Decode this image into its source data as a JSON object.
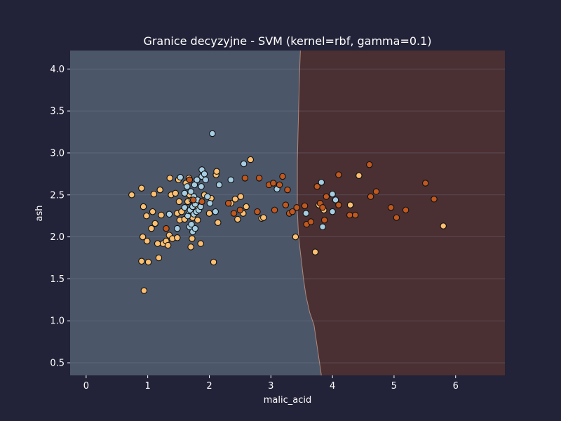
{
  "chart_data": {
    "type": "scatter",
    "title": "Granice decyzyjne - SVM (kernel=rbf, gamma=0.1)",
    "xlabel": "malic_acid",
    "ylabel": "ash",
    "xlim": [
      -0.26,
      6.8
    ],
    "ylim": [
      0.35,
      4.22
    ],
    "xticks": [
      0,
      1,
      2,
      3,
      4,
      5,
      6
    ],
    "yticks": [
      0.5,
      1.0,
      1.5,
      2.0,
      2.5,
      3.0,
      3.5,
      4.0
    ],
    "grid": true,
    "regions": [
      {
        "class": "class_0",
        "color": "#4b5669",
        "side": "left"
      },
      {
        "class": "class_2",
        "color": "#4a3033",
        "side": "right"
      }
    ],
    "boundary": [
      [
        3.82,
        0.35
      ],
      [
        3.78,
        0.55
      ],
      [
        3.74,
        0.75
      ],
      [
        3.7,
        0.95
      ],
      [
        3.63,
        1.1
      ],
      [
        3.57,
        1.3
      ],
      [
        3.53,
        1.5
      ],
      [
        3.49,
        1.75
      ],
      [
        3.45,
        2.0
      ],
      [
        3.43,
        2.3
      ],
      [
        3.43,
        2.6
      ],
      [
        3.43,
        2.9
      ],
      [
        3.44,
        3.2
      ],
      [
        3.45,
        3.5
      ],
      [
        3.46,
        3.8
      ],
      [
        3.47,
        4.05
      ],
      [
        3.48,
        4.22
      ]
    ],
    "class_colors": {
      "class_0": "#fdbf6f",
      "class_1": "#a6cee3",
      "class_2": "#c0581f"
    },
    "series": [
      {
        "class": "class_0",
        "color": "#fdbf6f",
        "points": [
          [
            0.74,
            2.5
          ],
          [
            0.9,
            2.58
          ],
          [
            0.9,
            1.71
          ],
          [
            0.92,
            2.0
          ],
          [
            0.93,
            2.36
          ],
          [
            0.94,
            1.36
          ],
          [
            0.98,
            2.25
          ],
          [
            0.99,
            1.95
          ],
          [
            1.01,
            1.7
          ],
          [
            1.06,
            2.1
          ],
          [
            1.08,
            2.3
          ],
          [
            1.1,
            2.51
          ],
          [
            1.12,
            2.16
          ],
          [
            1.16,
            1.92
          ],
          [
            1.18,
            1.75
          ],
          [
            1.2,
            2.56
          ],
          [
            1.22,
            2.26
          ],
          [
            1.25,
            1.92
          ],
          [
            1.3,
            1.95
          ],
          [
            1.33,
            1.9
          ],
          [
            1.35,
            2.02
          ],
          [
            1.36,
            2.7
          ],
          [
            1.38,
            2.5
          ],
          [
            1.4,
            1.98
          ],
          [
            1.45,
            2.52
          ],
          [
            1.48,
            2.28
          ],
          [
            1.48,
            1.99
          ],
          [
            1.5,
            2.68
          ],
          [
            1.51,
            2.42
          ],
          [
            1.52,
            2.2
          ],
          [
            1.55,
            2.3
          ],
          [
            1.6,
            2.21
          ],
          [
            1.62,
            2.64
          ],
          [
            1.65,
            2.42
          ],
          [
            1.67,
            2.7
          ],
          [
            1.68,
            2.5
          ],
          [
            1.7,
            1.88
          ],
          [
            1.72,
            1.98
          ],
          [
            1.73,
            2.23
          ],
          [
            1.78,
            2.35
          ],
          [
            1.81,
            2.2
          ],
          [
            1.86,
            1.92
          ],
          [
            1.92,
            2.5
          ],
          [
            2.0,
            2.28
          ],
          [
            2.03,
            2.46
          ],
          [
            2.07,
            1.7
          ],
          [
            2.11,
            2.74
          ],
          [
            2.12,
            2.78
          ],
          [
            2.14,
            2.17
          ],
          [
            2.35,
            2.4
          ],
          [
            2.42,
            2.45
          ],
          [
            2.46,
            2.21
          ],
          [
            2.51,
            2.48
          ],
          [
            2.55,
            2.28
          ],
          [
            2.6,
            2.36
          ],
          [
            2.67,
            2.92
          ],
          [
            2.85,
            2.22
          ],
          [
            2.88,
            2.23
          ],
          [
            3.4,
            2.0
          ],
          [
            3.72,
            1.82
          ],
          [
            3.78,
            2.38
          ],
          [
            3.86,
            2.32
          ],
          [
            4.29,
            2.38
          ],
          [
            4.43,
            2.73
          ],
          [
            5.8,
            2.13
          ]
        ]
      },
      {
        "class": "class_1",
        "color": "#a6cee3",
        "points": [
          [
            1.35,
            2.27
          ],
          [
            1.48,
            2.1
          ],
          [
            1.53,
            2.71
          ],
          [
            1.6,
            2.35
          ],
          [
            1.6,
            2.52
          ],
          [
            1.64,
            2.6
          ],
          [
            1.65,
            2.25
          ],
          [
            1.67,
            2.31
          ],
          [
            1.68,
            2.12
          ],
          [
            1.69,
            2.32
          ],
          [
            1.7,
            2.54
          ],
          [
            1.71,
            2.15
          ],
          [
            1.72,
            2.44
          ],
          [
            1.73,
            2.36
          ],
          [
            1.73,
            2.06
          ],
          [
            1.75,
            2.48
          ],
          [
            1.75,
            2.27
          ],
          [
            1.76,
            2.62
          ],
          [
            1.77,
            2.1
          ],
          [
            1.77,
            2.39
          ],
          [
            1.79,
            2.3
          ],
          [
            1.8,
            2.68
          ],
          [
            1.81,
            2.44
          ],
          [
            1.83,
            2.32
          ],
          [
            1.86,
            2.36
          ],
          [
            1.87,
            2.6
          ],
          [
            1.88,
            2.72
          ],
          [
            1.88,
            2.8
          ],
          [
            1.92,
            2.75
          ],
          [
            1.94,
            2.68
          ],
          [
            1.97,
            2.48
          ],
          [
            2.01,
            2.4
          ],
          [
            2.05,
            3.23
          ],
          [
            2.1,
            2.3
          ],
          [
            2.16,
            2.62
          ],
          [
            2.35,
            2.68
          ],
          [
            2.56,
            2.87
          ],
          [
            3.1,
            2.57
          ],
          [
            3.57,
            2.28
          ],
          [
            3.82,
            2.65
          ],
          [
            3.84,
            2.12
          ],
          [
            4.0,
            2.3
          ],
          [
            4.0,
            2.51
          ],
          [
            4.05,
            2.44
          ]
        ]
      },
      {
        "class": "class_2",
        "color": "#c0581f",
        "points": [
          [
            1.3,
            2.1
          ],
          [
            1.68,
            2.68
          ],
          [
            1.74,
            2.44
          ],
          [
            1.88,
            2.42
          ],
          [
            2.31,
            2.4
          ],
          [
            2.4,
            2.28
          ],
          [
            2.5,
            2.32
          ],
          [
            2.58,
            2.7
          ],
          [
            2.78,
            2.3
          ],
          [
            2.81,
            2.7
          ],
          [
            2.97,
            2.62
          ],
          [
            3.04,
            2.64
          ],
          [
            3.06,
            2.32
          ],
          [
            3.14,
            2.62
          ],
          [
            3.19,
            2.72
          ],
          [
            3.24,
            2.38
          ],
          [
            3.27,
            2.56
          ],
          [
            3.3,
            2.28
          ],
          [
            3.35,
            2.3
          ],
          [
            3.42,
            2.35
          ],
          [
            3.55,
            2.37
          ],
          [
            3.58,
            2.15
          ],
          [
            3.65,
            2.18
          ],
          [
            3.75,
            2.6
          ],
          [
            3.8,
            2.4
          ],
          [
            3.84,
            2.35
          ],
          [
            3.87,
            2.2
          ],
          [
            3.9,
            2.48
          ],
          [
            4.1,
            2.38
          ],
          [
            4.1,
            2.74
          ],
          [
            4.28,
            2.26
          ],
          [
            4.37,
            2.26
          ],
          [
            4.6,
            2.86
          ],
          [
            4.62,
            2.48
          ],
          [
            4.71,
            2.54
          ],
          [
            4.95,
            2.35
          ],
          [
            5.04,
            2.23
          ],
          [
            5.19,
            2.32
          ],
          [
            5.51,
            2.64
          ],
          [
            5.65,
            2.45
          ]
        ]
      }
    ]
  }
}
